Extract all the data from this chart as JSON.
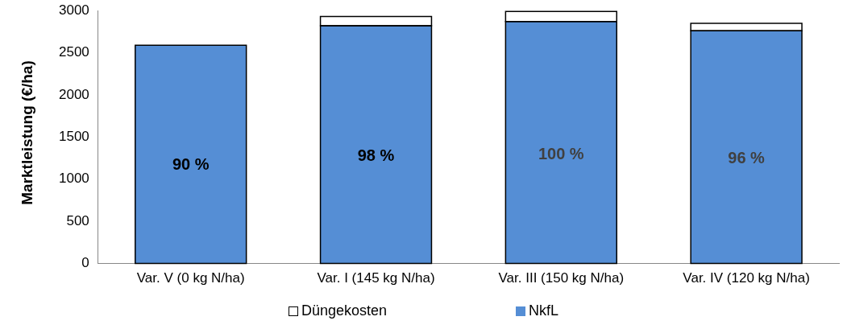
{
  "chart_data": {
    "type": "bar",
    "ylabel": "Marktleistung (€/ha)",
    "categories": [
      "Var. V (0 kg N/ha)",
      "Var. I (145 kg N/ha)",
      "Var. III (150 kg N/ha)",
      "Var. IV (120 kg N/ha)"
    ],
    "stacked": true,
    "series": [
      {
        "name": "NkfL",
        "color": "#558ed5",
        "values": [
          2590,
          2820,
          2870,
          2760
        ]
      },
      {
        "name": "Düngekosten",
        "color": "#ffffff",
        "values": [
          null,
          110,
          120,
          90
        ]
      }
    ],
    "ylim": [
      0,
      3000
    ],
    "yticks": [
      0,
      500,
      1000,
      1500,
      2000,
      2500,
      3000
    ],
    "grid": false,
    "legend": "bottom",
    "annotations": [
      "90 %",
      "98 %",
      "100 %",
      "96 %"
    ]
  }
}
